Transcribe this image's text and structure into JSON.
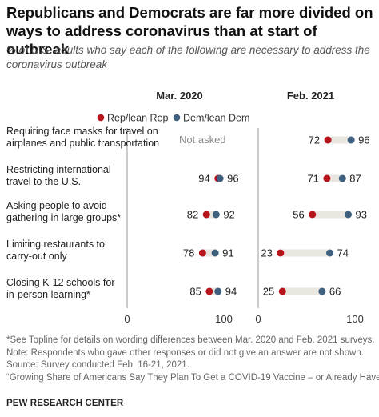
{
  "title": "Republicans and Democrats are far more divided on ways to address coronavirus than at start of outbreak",
  "subtitle": "% of U.S. adults who say each of the following are necessary to address the coronavirus outbreak",
  "legend": {
    "rep": "Rep/lean Rep",
    "dem": "Dem/lean Dem"
  },
  "colors": {
    "rep": "#b8141c",
    "dem": "#3f5f7f",
    "bar": "#e9e6e0",
    "axis": "#9a9a9a",
    "not_asked": "#8c8c8c"
  },
  "chart_data": {
    "type": "dot",
    "panels": [
      {
        "title": "Mar. 2020",
        "xlim": [
          0,
          100
        ],
        "ticks": [
          "0",
          "100"
        ]
      },
      {
        "title": "Feb. 2021",
        "xlim": [
          0,
          100
        ],
        "ticks": [
          "0",
          "100"
        ]
      }
    ],
    "categories": [
      {
        "label_lines": [
          "Requiring face masks for travel on",
          "airplanes and public transportation"
        ],
        "mar2020": null,
        "mar2020_note": "Not asked",
        "feb2021": {
          "rep": 72,
          "dem": 96
        }
      },
      {
        "label_lines": [
          "Restricting international",
          "travel to the U.S."
        ],
        "mar2020": {
          "rep": 94,
          "dem": 96
        },
        "feb2021": {
          "rep": 71,
          "dem": 87
        }
      },
      {
        "label_lines": [
          "Asking people to avoid",
          "gathering in large groups*"
        ],
        "mar2020": {
          "rep": 82,
          "dem": 92
        },
        "feb2021": {
          "rep": 56,
          "dem": 93
        }
      },
      {
        "label_lines": [
          "Limiting restaurants to",
          "carry-out only"
        ],
        "mar2020": {
          "rep": 78,
          "dem": 91
        },
        "feb2021": {
          "rep": 23,
          "dem": 74
        }
      },
      {
        "label_lines": [
          "Closing K-12 schools for",
          "in-person learning*"
        ],
        "mar2020": {
          "rep": 85,
          "dem": 94
        },
        "feb2021": {
          "rep": 25,
          "dem": 66
        }
      }
    ]
  },
  "notes": [
    "*See Topline for details on wording differences between Mar. 2020 and Feb. 2021 surveys.",
    "Note: Respondents who gave other responses or did not give an answer are not shown.",
    "Source: Survey conducted Feb. 16-21, 2021.",
    "“Growing Share of Americans Say They Plan To Get a COVID-19 Vaccine – or Already Have”"
  ],
  "source_org": "PEW RESEARCH CENTER"
}
